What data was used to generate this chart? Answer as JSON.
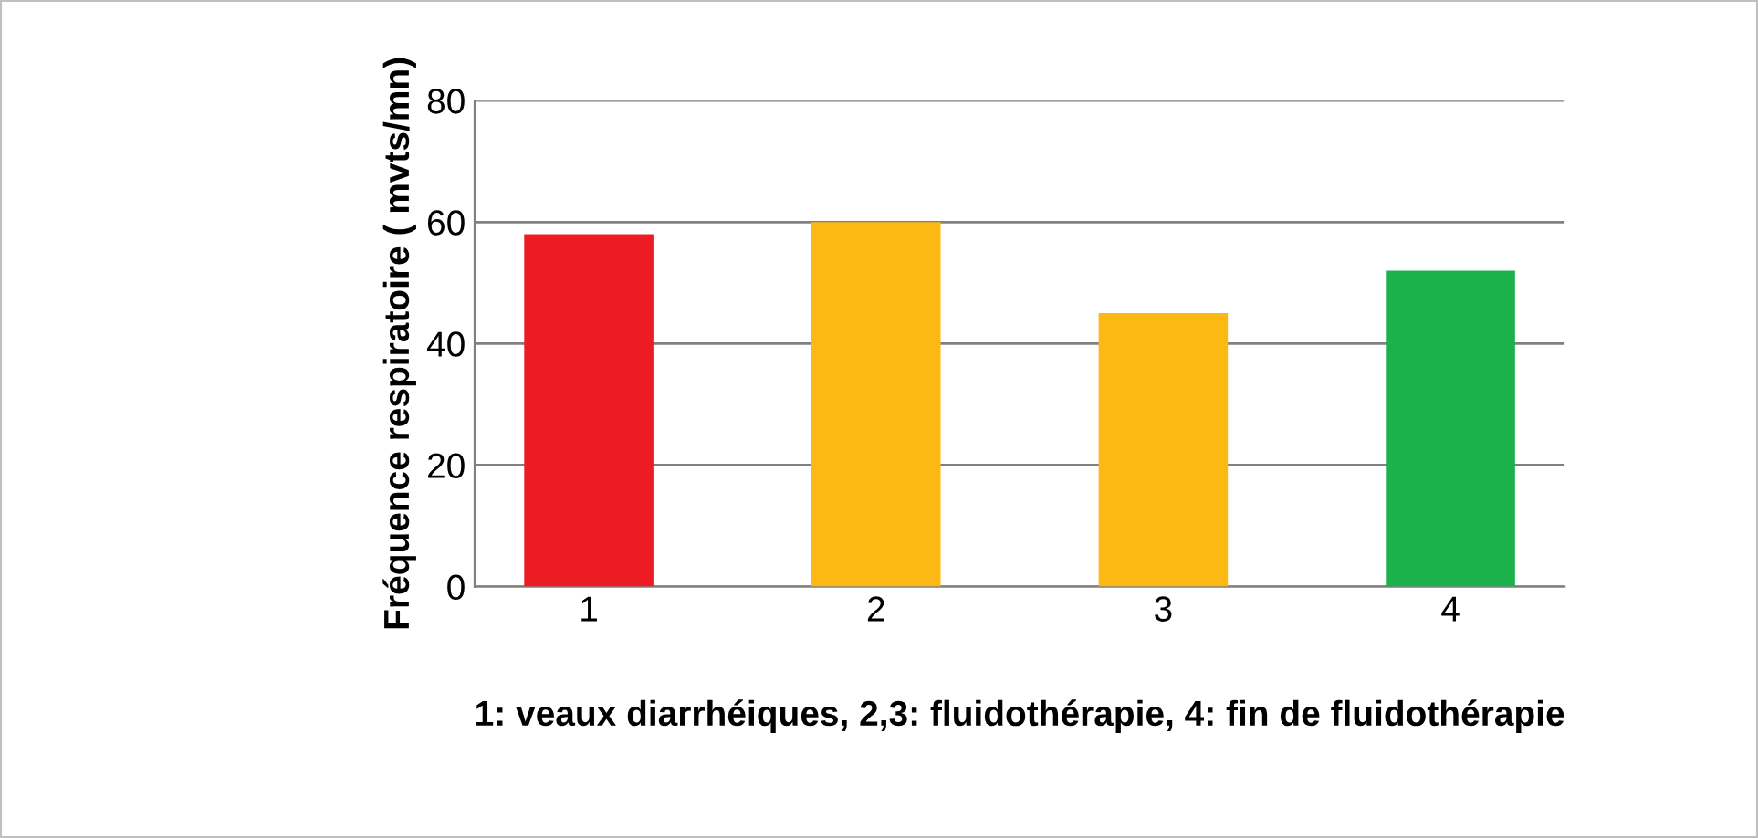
{
  "chart_data": {
    "type": "bar",
    "xlabel": "1: veaux diarrhéiques, 2,3: fluidothérapie, 4: fin de fluidothérapie",
    "ylabel": "Fréquence respiratoire ( mvts/mn)",
    "categories": [
      "1",
      "2",
      "3",
      "4"
    ],
    "values": [
      58,
      60,
      45,
      52
    ],
    "colors": [
      "#ed1c24",
      "#fdb913",
      "#fdb913",
      "#1db14b"
    ],
    "ylim": [
      0,
      80
    ],
    "yticks": [
      0,
      20,
      40,
      60,
      80
    ],
    "grid": "y"
  }
}
